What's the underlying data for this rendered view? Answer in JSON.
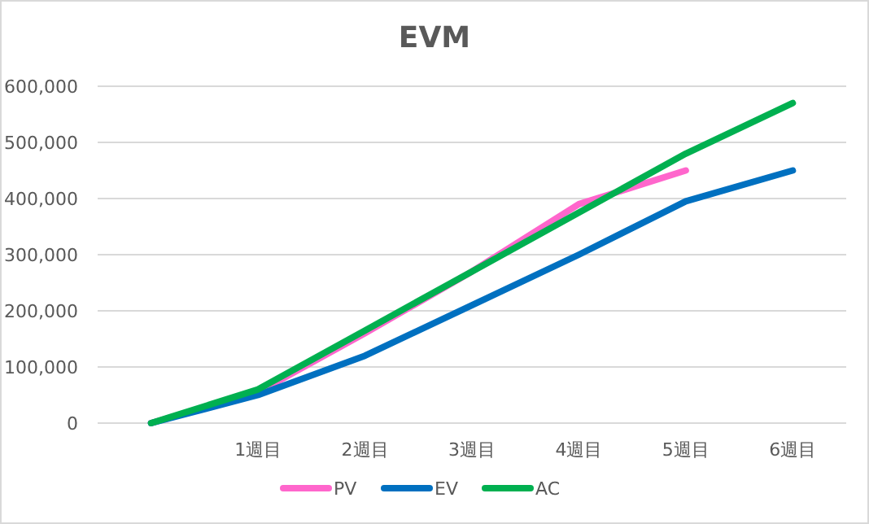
{
  "chart_data": {
    "type": "line",
    "title": "EVM",
    "categories": [
      null,
      "1週目",
      "2週目",
      "3週目",
      "4週目",
      "5週目",
      "6週目"
    ],
    "series": [
      {
        "name": "PV",
        "color": "#ff66cc",
        "values": [
          0,
          55000,
          160000,
          270000,
          390000,
          450000,
          null
        ]
      },
      {
        "name": "EV",
        "color": "#0070c0",
        "values": [
          0,
          50000,
          120000,
          210000,
          300000,
          395000,
          450000
        ]
      },
      {
        "name": "AC",
        "color": "#00b050",
        "values": [
          0,
          60000,
          165000,
          270000,
          375000,
          480000,
          570000
        ]
      }
    ],
    "ylim": [
      0,
      600000
    ],
    "yticks": [
      {
        "value": 0,
        "label": "0"
      },
      {
        "value": 100000,
        "label": "100,000"
      },
      {
        "value": 200000,
        "label": "200,000"
      },
      {
        "value": 300000,
        "label": "300,000"
      },
      {
        "value": 400000,
        "label": "400,000"
      },
      {
        "value": 500000,
        "label": "500,000"
      },
      {
        "value": 600000,
        "label": "600,000"
      }
    ],
    "grid": "y",
    "legend": "bottom",
    "marker": "none",
    "line_style": "solid"
  }
}
